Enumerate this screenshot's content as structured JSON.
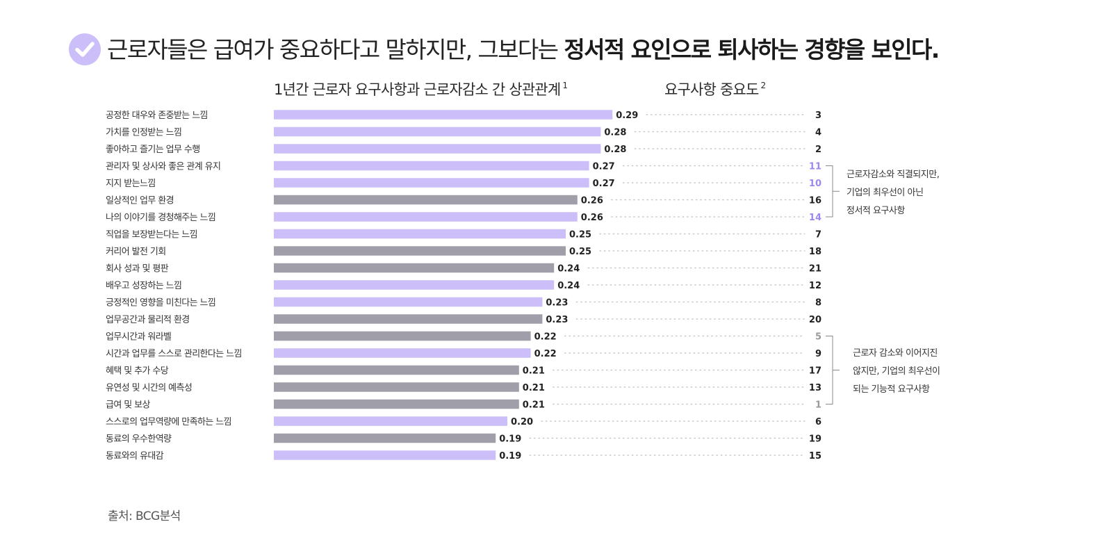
{
  "header": {
    "title_regular": "근로자들은 급여가 중요하다고 말하지만, 그보다는 ",
    "title_bold": "정서적 요인으로 퇴사하는 경향을 보인다.",
    "check_icon": "check-circle-icon"
  },
  "columns": {
    "correlation_title": "1년간 근로자 요구사항과 근로자감소  간 상관관계",
    "correlation_sup": "1",
    "importance_title": "요구사항 중요도",
    "importance_sup": "2"
  },
  "chart_data": {
    "type": "bar",
    "orientation": "horizontal",
    "categories": [
      "공정한 대우와 존중받는 느낌",
      "가치를 인정받는 느낌",
      "좋아하고 즐기는 업무 수행",
      "관리자 및 상사와 좋은 관계 유지",
      "지지 받는느낌",
      "일상적인 업무 환경",
      "나의 이야기를 경청해주는 느낌",
      "직업을 보장받는다는 느낌",
      "커리어 발전 기회",
      "회사 성과 및 평판",
      "배우고 성장하는 느낌",
      "긍정적인 영향을 미친다는 느낌",
      "업무공간과 물리적 환경",
      "업무시간과 워라벨",
      "시간과 업무를 스스로 관리한다는 느낌",
      "혜택 및 추가 수당",
      "유연성 및 시간의 예측성",
      "급여 및 보상",
      "스스로의 업무역량에 만족하는 느낌",
      "동료의 우수한역량",
      "동료와의 유대감"
    ],
    "values": [
      0.29,
      0.28,
      0.28,
      0.27,
      0.27,
      0.26,
      0.26,
      0.25,
      0.25,
      0.24,
      0.24,
      0.23,
      0.23,
      0.22,
      0.22,
      0.21,
      0.21,
      0.21,
      0.2,
      0.19,
      0.19
    ],
    "value_labels": [
      "0.29",
      "0.28",
      "0.28",
      "0.27",
      "0.27",
      "0.26",
      "0.26",
      "0.25",
      "0.25",
      "0.24",
      "0.24",
      "0.23",
      "0.23",
      "0.22",
      "0.22",
      "0.21",
      "0.21",
      "0.21",
      "0.20",
      "0.19",
      "0.19"
    ],
    "importance_rank": [
      3,
      4,
      2,
      11,
      10,
      16,
      14,
      7,
      18,
      21,
      12,
      8,
      20,
      5,
      9,
      17,
      13,
      1,
      6,
      19,
      15
    ],
    "bar_color_type": [
      "emotional",
      "emotional",
      "emotional",
      "emotional",
      "emotional",
      "functional",
      "emotional",
      "emotional",
      "functional",
      "functional",
      "emotional",
      "emotional",
      "functional",
      "functional",
      "emotional",
      "functional",
      "functional",
      "functional",
      "emotional",
      "functional",
      "emotional"
    ],
    "rank_highlight": [
      "",
      "",
      "",
      "emotional",
      "emotional",
      "",
      "emotional",
      "",
      "",
      "",
      "",
      "",
      "",
      "functional",
      "",
      "",
      "",
      "functional",
      "",
      "",
      ""
    ],
    "xlim": [
      0,
      0.3
    ],
    "colors": {
      "emotional": "#cbbef9",
      "functional": "#a09ea8",
      "emotional_rank": "#9d87ef",
      "functional_rank": "#9a9a9a",
      "rank_default": "#222222",
      "dots": "#c8c8c8"
    },
    "annotations": [
      {
        "rows": [
          3,
          6
        ],
        "text": [
          "근로자감소와 직결되지만,",
          "기업의 최우선이 아닌",
          "정서적 요구사항"
        ]
      },
      {
        "rows": [
          13,
          17
        ],
        "text": [
          "근로자 감소와 이어지진",
          "않지만, 기업의 최우선이",
          "되는 기능적 요구사항"
        ]
      }
    ]
  },
  "footer": {
    "source": "출처: BCG분석"
  }
}
